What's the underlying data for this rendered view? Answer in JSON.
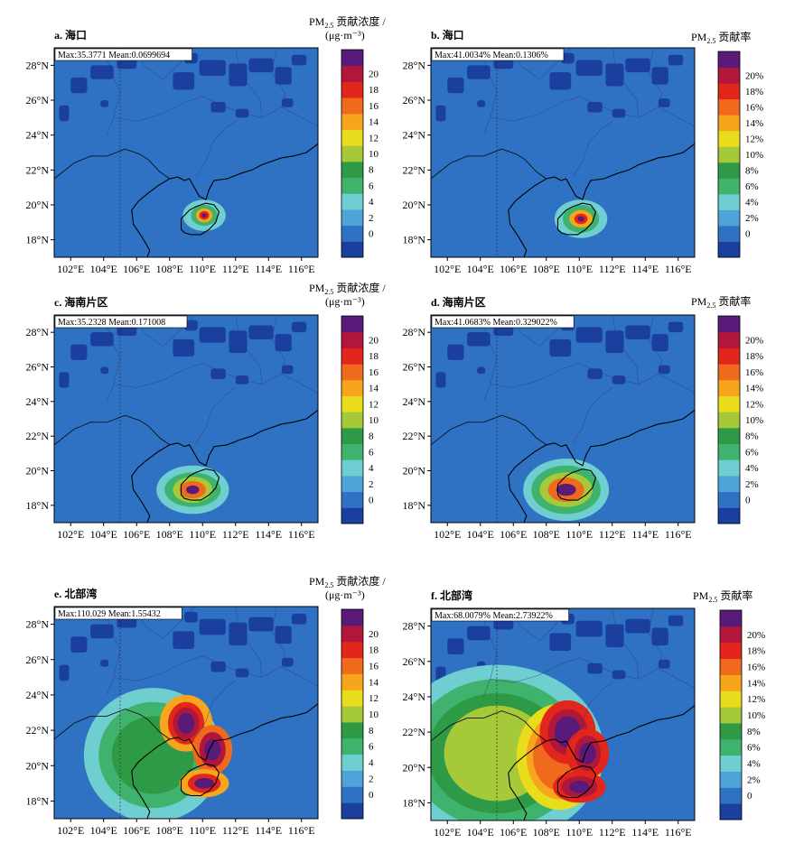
{
  "figure": {
    "lon_ticks": [
      "102°E",
      "104°E",
      "106°E",
      "108°E",
      "110°E",
      "112°E",
      "114°E",
      "116°E"
    ],
    "lat_ticks": [
      "18°N",
      "20°N",
      "22°N",
      "24°N",
      "26°N",
      "28°N"
    ],
    "colorbar_colors": [
      "#1a3f9e",
      "#2f72c4",
      "#4ea3d9",
      "#6fcfd0",
      "#3fb36e",
      "#2f9a45",
      "#a6c93a",
      "#e9dc1c",
      "#f6a51c",
      "#ef6a1c",
      "#e3261b",
      "#b0173a",
      "#5a1a7a"
    ],
    "concentration_label_main": "PM",
    "concentration_label_sub": "2.5",
    "concentration_label_suffix": " 贡献浓度 /",
    "concentration_unit": "(μg·m⁻³)",
    "rate_label_main": "PM",
    "rate_label_sub": "2.5",
    "rate_label_suffix": " 贡献率",
    "concentration_ticks": [
      "0",
      "2",
      "4",
      "6",
      "8",
      "10",
      "12",
      "14",
      "16",
      "18",
      "20"
    ],
    "rate_ticks": [
      "0",
      "2%",
      "4%",
      "6%",
      "8%",
      "10%",
      "12%",
      "14%",
      "16%",
      "18%",
      "20%"
    ]
  },
  "chart_data": [
    {
      "type": "heatmap",
      "panel": "a",
      "title": "a. 海口",
      "stats": "Max:35.3771 Mean:0.0699694",
      "colorbar": "concentration",
      "xlim": [
        101,
        117
      ],
      "ylim": [
        17,
        29
      ]
    },
    {
      "type": "heatmap",
      "panel": "b",
      "title": "b. 海口",
      "stats": "Max:41.0034% Mean:0.1306%",
      "colorbar": "rate",
      "xlim": [
        101,
        117
      ],
      "ylim": [
        17,
        29
      ]
    },
    {
      "type": "heatmap",
      "panel": "c",
      "title": "c. 海南片区",
      "stats": "Max:35.2328 Mean:0.171008",
      "colorbar": "concentration",
      "xlim": [
        101,
        117
      ],
      "ylim": [
        17,
        29
      ]
    },
    {
      "type": "heatmap",
      "panel": "d",
      "title": "d. 海南片区",
      "stats": "Max:41.0683% Mean:0.329022%",
      "colorbar": "rate",
      "xlim": [
        101,
        117
      ],
      "ylim": [
        17,
        29
      ]
    },
    {
      "type": "heatmap",
      "panel": "e",
      "title": "e. 北部湾",
      "stats": "Max:110.029 Mean:1.55432",
      "colorbar": "concentration",
      "xlim": [
        101,
        117
      ],
      "ylim": [
        17,
        29
      ]
    },
    {
      "type": "heatmap",
      "panel": "f",
      "title": "f. 北部湾",
      "stats": "Max:68.0079% Mean:2.73922%",
      "colorbar": "rate",
      "xlim": [
        101,
        117
      ],
      "ylim": [
        17,
        29
      ]
    }
  ]
}
